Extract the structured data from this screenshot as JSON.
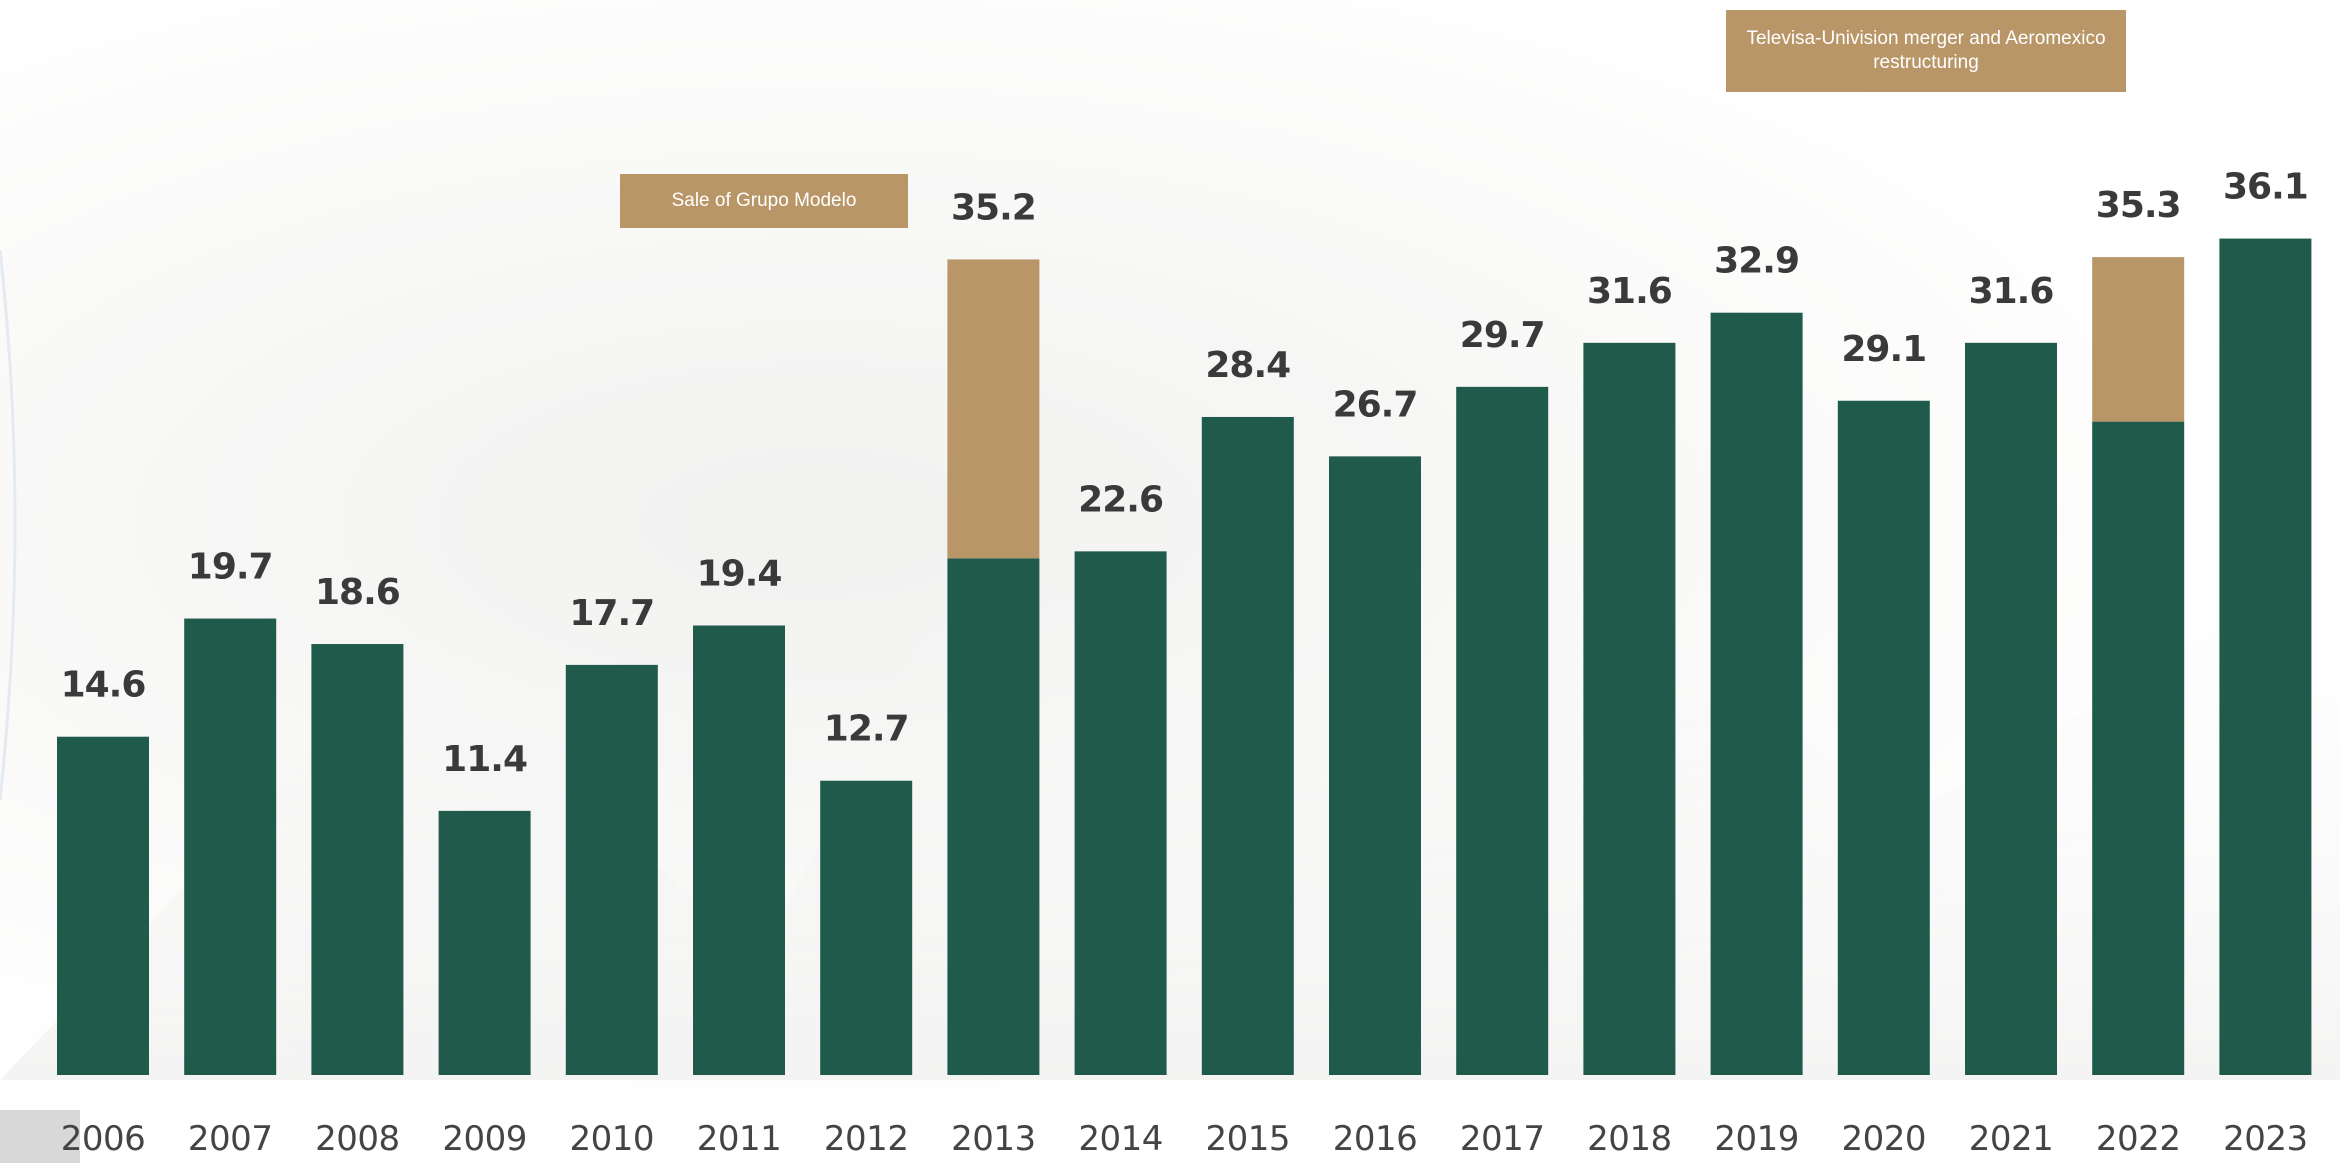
{
  "colors": {
    "base": "#1f5a4a",
    "extra": "#b89668",
    "value_text": "#3a3a3a",
    "tick_text": "#444444"
  },
  "chart_data": {
    "type": "bar",
    "stacked": true,
    "title": "",
    "xlabel": "",
    "ylabel": "",
    "ylim": [
      0,
      38
    ],
    "grid": false,
    "legend": "none",
    "categories": [
      "2006",
      "2007",
      "2008",
      "2009",
      "2010",
      "2011",
      "2012",
      "2013",
      "2014",
      "2015",
      "2016",
      "2017",
      "2018",
      "2019",
      "2020",
      "2021",
      "2022",
      "2023"
    ],
    "labels": [
      "14.6",
      "19.7",
      "18.6",
      "11.4",
      "17.7",
      "19.4",
      "12.7",
      "35.2",
      "22.6",
      "28.4",
      "26.7",
      "29.7",
      "31.6",
      "32.9",
      "29.1",
      "31.6",
      "35.3",
      "36.1"
    ],
    "series": [
      {
        "values": [
          14.6,
          19.7,
          18.6,
          11.4,
          17.7,
          19.4,
          12.7,
          22.3,
          22.6,
          28.4,
          26.7,
          29.7,
          31.6,
          32.9,
          29.1,
          31.6,
          28.2,
          36.1
        ]
      },
      {
        "values": [
          0,
          0,
          0,
          0,
          0,
          0,
          0,
          12.9,
          0,
          0,
          0,
          0,
          0,
          0,
          0,
          0,
          7.1,
          0
        ]
      }
    ]
  },
  "annotations": [
    {
      "text": "Sale of Grupo Modelo"
    },
    {
      "text": "Televisa-Univision merger and Aeromexico restructuring"
    }
  ]
}
